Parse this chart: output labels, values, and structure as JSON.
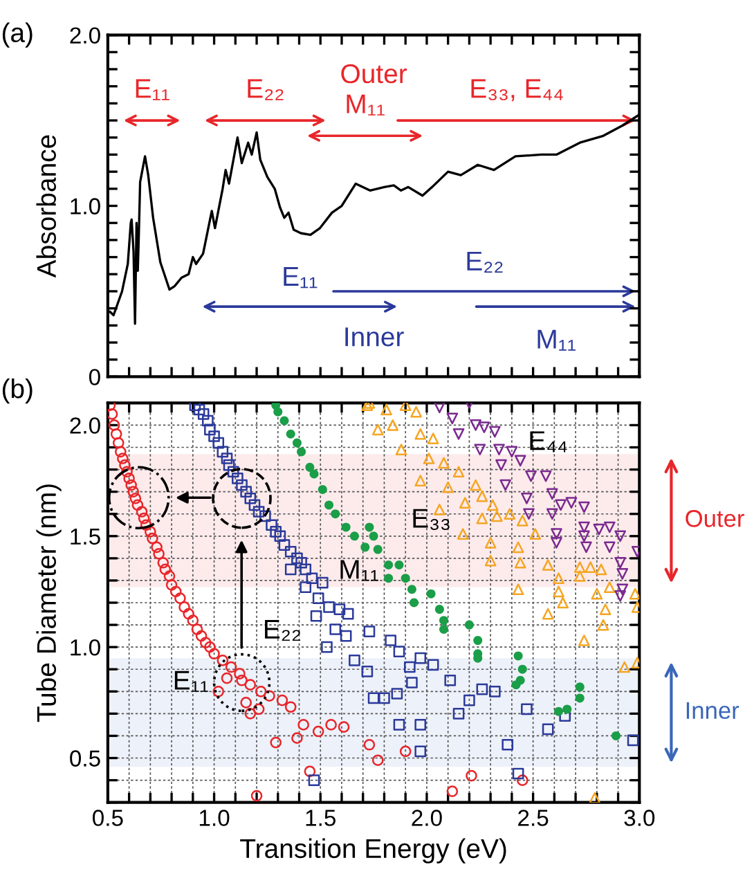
{
  "chart_data": [
    {
      "type": "line",
      "ylabel": "Absorbance",
      "xlim": [
        0.5,
        3.0
      ],
      "ylim": [
        0,
        2.0
      ],
      "tick_labels": "y",
      "grid": false,
      "legend": false,
      "xticks": [
        0.5,
        {
          "value": 0.6,
          "label": null
        },
        {
          "value": 0.7,
          "label": null
        },
        {
          "value": 0.8,
          "label": null
        },
        {
          "value": 0.9,
          "label": null
        },
        {
          "value": 1.0,
          "label": null
        },
        {
          "value": 1.1,
          "label": null
        },
        {
          "value": 1.2,
          "label": null
        },
        {
          "value": 1.3,
          "label": null
        },
        {
          "value": 1.4,
          "label": null
        },
        {
          "value": 1.5,
          "label": null
        },
        {
          "value": 1.6,
          "label": null
        },
        {
          "value": 1.7,
          "label": null
        },
        {
          "value": 1.8,
          "label": null
        },
        {
          "value": 1.9,
          "label": null
        },
        {
          "value": 2.0,
          "label": null
        },
        {
          "value": 2.1,
          "label": null
        },
        {
          "value": 2.2,
          "label": null
        },
        {
          "value": 2.3,
          "label": null
        },
        {
          "value": 2.4,
          "label": null
        },
        {
          "value": 2.5,
          "label": null
        },
        {
          "value": 2.6,
          "label": null
        },
        {
          "value": 2.7,
          "label": null
        },
        {
          "value": 2.8,
          "label": null
        },
        {
          "value": 2.9,
          "label": null
        },
        {
          "value": 3.0,
          "label": null
        }
      ],
      "yticks": [
        0,
        {
          "value": 0.1,
          "label": null
        },
        {
          "value": 0.2,
          "label": null
        },
        {
          "value": 0.3,
          "label": null
        },
        {
          "value": 0.4,
          "label": null
        },
        {
          "value": 0.5,
          "label": null
        },
        {
          "value": 0.6,
          "label": null
        },
        {
          "value": 0.7,
          "label": null
        },
        {
          "value": 0.8,
          "label": null
        },
        {
          "value": 0.9,
          "label": null
        },
        {
          "value": 1.0,
          "label": "1.0"
        },
        {
          "value": 1.1,
          "label": null
        },
        {
          "value": 1.2,
          "label": null
        },
        {
          "value": 1.3,
          "label": null
        },
        {
          "value": 1.4,
          "label": null
        },
        {
          "value": 1.5,
          "label": null
        },
        {
          "value": 1.6,
          "label": null
        },
        {
          "value": 1.7,
          "label": null
        },
        {
          "value": 1.8,
          "label": null
        },
        {
          "value": 1.9,
          "label": null
        },
        {
          "value": 2.0,
          "label": "2.0"
        }
      ],
      "series": [
        {
          "color": "#000000",
          "x": [
            0.51,
            0.527,
            0.567,
            0.594,
            0.608,
            0.612,
            0.621,
            0.628,
            0.635,
            0.641,
            0.646,
            0.652,
            0.675,
            0.69,
            0.713,
            0.747,
            0.79,
            0.814,
            0.847,
            0.88,
            0.9,
            0.915,
            0.948,
            0.989,
            1.004,
            1.04,
            1.054,
            1.07,
            1.11,
            1.13,
            1.16,
            1.177,
            1.2,
            1.217,
            1.25,
            1.285,
            1.31,
            1.33,
            1.35,
            1.374,
            1.408,
            1.453,
            1.498,
            1.554,
            1.6,
            1.666,
            1.733,
            1.8,
            1.845,
            1.879,
            1.913,
            1.98,
            2.025,
            2.1,
            2.16,
            2.24,
            2.316,
            2.417,
            2.54,
            2.61,
            2.72,
            2.83,
            2.92,
            2.995
          ],
          "values": [
            0.38,
            0.36,
            0.5,
            0.66,
            0.9,
            0.92,
            0.73,
            0.31,
            0.9,
            0.62,
            0.84,
            1.14,
            1.29,
            1.18,
            0.93,
            0.67,
            0.51,
            0.53,
            0.58,
            0.6,
            0.7,
            0.66,
            0.72,
            0.97,
            0.87,
            1.1,
            1.21,
            1.13,
            1.4,
            1.25,
            1.37,
            1.3,
            1.43,
            1.27,
            1.17,
            1.1,
            0.99,
            0.93,
            0.96,
            0.86,
            0.84,
            0.83,
            0.87,
            0.96,
            1.0,
            1.13,
            1.09,
            1.11,
            1.12,
            1.09,
            1.11,
            1.06,
            1.11,
            1.2,
            1.18,
            1.24,
            1.21,
            1.29,
            1.3,
            1.3,
            1.37,
            1.41,
            1.47,
            1.53
          ]
        }
      ],
      "annotations": [
        "(a)",
        "Outer",
        "Inner",
        "E₁₁",
        "E₂₂",
        "M₁₁",
        "E₃₃, E₄₄",
        "E₁₁",
        "E₂₂",
        "M₁₁"
      ]
    },
    {
      "type": "scatter",
      "xlabel": "Transition Energy (eV)",
      "ylabel": "Tube Diameter (nm)",
      "xlim": [
        0.5,
        3.0
      ],
      "ylim": [
        0.3,
        2.1
      ],
      "grid": true,
      "legend": false,
      "xticks": [
        0.5,
        {
          "value": 0.6,
          "label": null
        },
        {
          "value": 0.7,
          "label": null
        },
        {
          "value": 0.8,
          "label": null
        },
        {
          "value": 0.9,
          "label": null
        },
        {
          "value": 1.0,
          "label": "1.0"
        },
        {
          "value": 1.1,
          "label": null
        },
        {
          "value": 1.2,
          "label": null
        },
        {
          "value": 1.3,
          "label": null
        },
        {
          "value": 1.4,
          "label": null
        },
        1.5,
        {
          "value": 1.6,
          "label": null
        },
        {
          "value": 1.7,
          "label": null
        },
        {
          "value": 1.8,
          "label": null
        },
        {
          "value": 1.9,
          "label": null
        },
        {
          "value": 2.0,
          "label": "2.0"
        },
        {
          "value": 2.1,
          "label": null
        },
        {
          "value": 2.2,
          "label": null
        },
        {
          "value": 2.3,
          "label": null
        },
        {
          "value": 2.4,
          "label": null
        },
        2.5,
        {
          "value": 2.6,
          "label": null
        },
        {
          "value": 2.7,
          "label": null
        },
        {
          "value": 2.8,
          "label": null
        },
        {
          "value": 2.9,
          "label": null
        },
        {
          "value": 3.0,
          "label": "3.0"
        }
      ],
      "yticks": [
        {
          "value": 0.3,
          "label": null
        },
        {
          "value": 0.4,
          "label": null
        },
        0.5,
        {
          "value": 0.6,
          "label": null
        },
        {
          "value": 0.7,
          "label": null
        },
        {
          "value": 0.8,
          "label": null
        },
        {
          "value": 0.9,
          "label": null
        },
        {
          "value": 1.0,
          "label": "1.0"
        },
        {
          "value": 1.1,
          "label": null
        },
        {
          "value": 1.2,
          "label": null
        },
        {
          "value": 1.3,
          "label": null
        },
        {
          "value": 1.4,
          "label": null
        },
        1.5,
        {
          "value": 1.6,
          "label": null
        },
        {
          "value": 1.7,
          "label": null
        },
        {
          "value": 1.8,
          "label": null
        },
        {
          "value": 1.9,
          "label": null
        },
        {
          "value": 2.0,
          "label": "2.0"
        },
        {
          "value": 2.1,
          "label": null
        }
      ],
      "series": [
        {
          "name": "E₁₁",
          "color": "#e8262a",
          "marker": "circle",
          "x": [
            0.51,
            0.52,
            0.53,
            0.54,
            0.55,
            0.56,
            0.57,
            0.58,
            0.59,
            0.6,
            0.61,
            0.62,
            0.63,
            0.64,
            0.66,
            0.67,
            0.68,
            0.7,
            0.71,
            0.73,
            0.74,
            0.76,
            0.77,
            0.79,
            0.8,
            0.82,
            0.84,
            0.86,
            0.88,
            0.9,
            0.92,
            0.94,
            0.96,
            0.98,
            1.0,
            1.04,
            1.08,
            1.06,
            1.02,
            1.13,
            1.12,
            1.17,
            1.22,
            1.26,
            1.15,
            1.21,
            1.32,
            1.17,
            1.36,
            1.42,
            1.49,
            1.55,
            1.61,
            1.29,
            1.39,
            1.2,
            1.45,
            1.73,
            1.77,
            1.9,
            2.12,
            2.21,
            2.45
          ],
          "values": [
            2.09,
            2.05,
            2.0,
            1.96,
            1.92,
            1.88,
            1.85,
            1.82,
            1.79,
            1.76,
            1.73,
            1.7,
            1.67,
            1.64,
            1.61,
            1.58,
            1.55,
            1.52,
            1.49,
            1.45,
            1.42,
            1.38,
            1.35,
            1.32,
            1.28,
            1.25,
            1.22,
            1.18,
            1.15,
            1.12,
            1.08,
            1.05,
            1.02,
            1.0,
            0.97,
            0.94,
            0.91,
            0.86,
            0.8,
            0.85,
            0.88,
            0.83,
            0.8,
            0.78,
            0.75,
            0.72,
            0.76,
            0.7,
            0.73,
            0.65,
            0.62,
            0.65,
            0.64,
            0.57,
            0.59,
            0.33,
            0.44,
            0.56,
            0.49,
            0.53,
            0.35,
            0.42,
            0.4
          ]
        },
        {
          "name": "E₂₂",
          "color": "#2b3a9a",
          "marker": "square",
          "x": [
            0.91,
            0.93,
            0.95,
            0.97,
            0.98,
            1.0,
            1.02,
            1.04,
            1.06,
            1.07,
            1.09,
            1.11,
            1.13,
            1.15,
            1.17,
            1.19,
            1.21,
            1.24,
            1.27,
            1.29,
            1.31,
            1.33,
            1.36,
            1.39,
            1.41,
            1.43,
            1.36,
            1.46,
            1.51,
            1.43,
            1.49,
            1.54,
            1.59,
            1.48,
            1.63,
            1.57,
            1.53,
            1.62,
            1.66,
            1.73,
            1.72,
            1.83,
            1.87,
            1.8,
            1.86,
            1.93,
            1.92,
            1.97,
            2.03,
            1.87,
            1.97,
            1.97,
            2.11,
            2.15,
            2.2,
            2.26,
            2.32,
            2.38,
            2.43,
            2.47,
            2.57,
            2.65,
            2.97,
            1.75,
            1.47
          ],
          "values": [
            2.09,
            2.07,
            2.05,
            2.02,
            1.98,
            1.95,
            1.92,
            1.88,
            1.85,
            1.82,
            1.79,
            1.76,
            1.73,
            1.7,
            1.67,
            1.64,
            1.61,
            1.59,
            1.55,
            1.52,
            1.5,
            1.46,
            1.43,
            1.4,
            1.38,
            1.35,
            1.35,
            1.31,
            1.29,
            1.27,
            1.22,
            1.18,
            1.17,
            1.14,
            1.15,
            1.08,
            1.0,
            1.05,
            0.94,
            1.07,
            0.89,
            1.03,
            0.98,
            0.77,
            0.79,
            0.84,
            0.91,
            0.95,
            0.92,
            0.65,
            0.65,
            0.53,
            0.85,
            0.7,
            0.76,
            0.81,
            0.8,
            0.56,
            0.43,
            0.72,
            0.63,
            0.69,
            0.58,
            0.77,
            0.4
          ]
        },
        {
          "name": "M₁₁",
          "color": "#1a9e48",
          "marker": "circle",
          "x": [
            1.29,
            1.3,
            1.33,
            1.36,
            1.39,
            1.41,
            1.45,
            1.47,
            1.51,
            1.54,
            1.57,
            1.62,
            1.66,
            1.71,
            1.73,
            1.75,
            1.77,
            1.82,
            1.82,
            1.87,
            1.9,
            1.93,
            1.94,
            2.02,
            2.06,
            2.08,
            2.08,
            2.2,
            2.24,
            2.24,
            2.24,
            2.43,
            2.45,
            2.44,
            2.42,
            2.72,
            2.72,
            2.66,
            2.62,
            2.89
          ],
          "values": [
            2.09,
            2.06,
            2.02,
            1.96,
            1.92,
            1.88,
            1.81,
            1.78,
            1.71,
            1.64,
            1.6,
            1.54,
            1.5,
            1.45,
            1.54,
            1.5,
            1.44,
            1.37,
            1.31,
            1.37,
            1.31,
            1.26,
            1.2,
            1.24,
            1.17,
            1.12,
            1.08,
            1.1,
            1.03,
            0.97,
            0.95,
            0.96,
            0.9,
            0.85,
            0.83,
            0.82,
            0.77,
            0.72,
            0.71,
            0.6
          ]
        },
        {
          "name": "E₃₃",
          "color": "#f5a623",
          "marker": "triangle",
          "x": [
            1.72,
            1.77,
            1.73,
            1.81,
            1.9,
            1.95,
            1.84,
            1.88,
            1.97,
            2.03,
            2.01,
            2.08,
            1.97,
            2.15,
            2.1,
            2.23,
            2.06,
            2.18,
            2.26,
            2.31,
            2.17,
            2.26,
            2.33,
            2.39,
            2.3,
            2.3,
            2.45,
            2.51,
            2.43,
            2.44,
            2.43,
            2.57,
            2.62,
            2.62,
            2.64,
            2.57,
            2.72,
            2.72,
            2.77,
            2.82,
            2.86,
            2.8,
            2.84,
            2.83,
            2.74,
            2.98,
            2.99,
            2.93,
            2.99,
            2.79
          ],
          "values": [
            2.09,
            1.98,
            2.1,
            2.07,
            2.09,
            2.06,
            2.0,
            1.89,
            1.96,
            1.94,
            1.85,
            1.83,
            1.75,
            1.79,
            1.72,
            1.73,
            1.62,
            1.65,
            1.68,
            1.64,
            1.51,
            1.58,
            1.59,
            1.6,
            1.47,
            1.39,
            1.57,
            1.51,
            1.45,
            1.38,
            1.26,
            1.37,
            1.31,
            1.25,
            1.2,
            1.15,
            1.36,
            1.32,
            1.36,
            1.35,
            1.27,
            1.24,
            1.17,
            1.1,
            1.03,
            1.24,
            1.18,
            0.91,
            0.93,
            0.32
          ]
        },
        {
          "name": "E₄₄",
          "color": "#7b2a90",
          "marker": "triangle_down",
          "x": [
            2.06,
            2.12,
            2.2,
            2.23,
            2.15,
            2.27,
            2.32,
            2.25,
            2.34,
            2.4,
            2.35,
            2.44,
            2.37,
            2.49,
            2.56,
            2.47,
            2.59,
            2.63,
            2.48,
            2.59,
            2.68,
            2.74,
            2.61,
            2.61,
            2.74,
            2.81,
            2.86,
            2.91,
            2.75,
            2.86,
            2.91,
            2.99,
            2.74,
            2.92,
            2.92,
            2.91
          ],
          "values": [
            2.08,
            2.03,
            2.1,
            2.0,
            1.96,
            1.99,
            1.97,
            1.89,
            1.89,
            1.88,
            1.82,
            1.84,
            1.73,
            1.77,
            1.77,
            1.67,
            1.69,
            1.64,
            1.6,
            1.6,
            1.65,
            1.63,
            1.51,
            1.47,
            1.54,
            1.53,
            1.54,
            1.5,
            1.45,
            1.45,
            1.38,
            1.43,
            1.5,
            1.33,
            1.26,
            1.23
          ]
        }
      ],
      "bands": [
        {
          "axis": "y",
          "from": 1.27,
          "to": 1.87,
          "label": "Outer",
          "color": "#e8262a"
        },
        {
          "axis": "y",
          "from": 0.46,
          "to": 0.95,
          "label": "Inner",
          "color": "#3a66b8"
        }
      ],
      "annotations": [
        "(b)"
      ]
    }
  ]
}
